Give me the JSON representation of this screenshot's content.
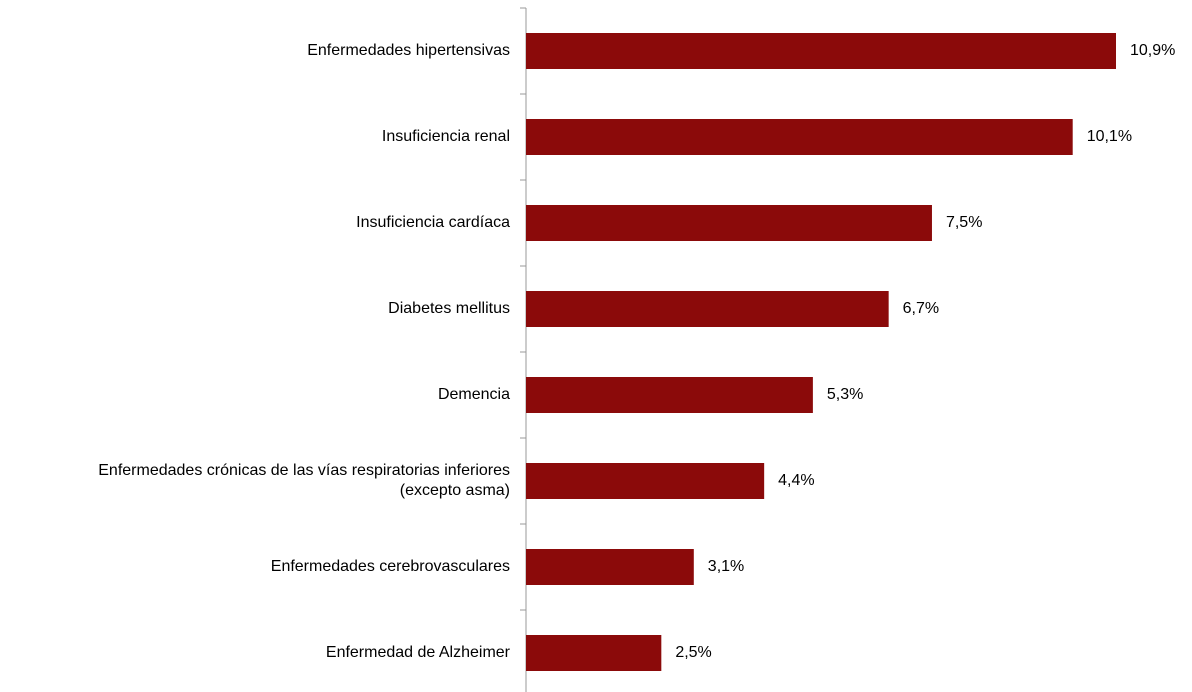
{
  "chart_data": {
    "type": "barh",
    "categories": [
      "Enfermedades hipertensivas",
      "Insuficiencia renal",
      "Insuficiencia cardíaca",
      "Diabetes mellitus",
      "Demencia",
      "Enfermedades crónicas de las vías respiratorias inferiores\n(excepto asma)",
      "Enfermedades cerebrovasculares",
      "Enfermedad de Alzheimer"
    ],
    "values": [
      10.9,
      10.1,
      7.5,
      6.7,
      5.3,
      4.4,
      3.1,
      2.5
    ],
    "value_labels": [
      "10,9%",
      "10,1%",
      "7,5%",
      "6,7%",
      "5,3%",
      "4,4%",
      "3,1%",
      "2,5%"
    ],
    "color": "#8b0a0a"
  }
}
